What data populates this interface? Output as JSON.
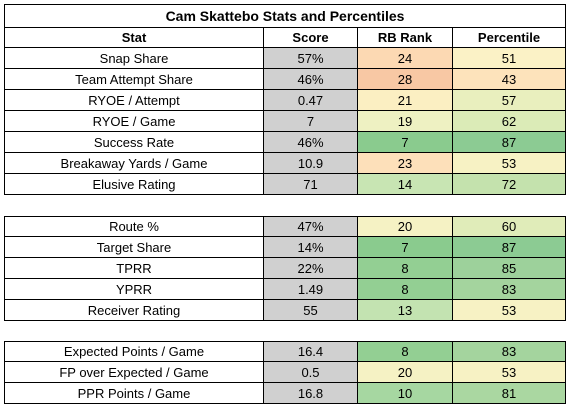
{
  "title": "Cam Skattebo Stats and Percentiles",
  "headers": [
    "Stat",
    "Score",
    "RB Rank",
    "Percentile"
  ],
  "colors": {
    "score_bg": "#d0d0d0",
    "rank_levels": {
      "7": "#8acb8e",
      "8": "#93cf93",
      "10": "#a6d7a1",
      "13": "#c3e3b1",
      "14": "#c8e5b3",
      "19": "#eef1c2",
      "20": "#f5f2c4",
      "21": "#fbefc2",
      "23": "#fde0ba",
      "24": "#fcd9b3",
      "28": "#f8c8a4"
    },
    "pct_levels": {
      "43": "#fde3bb",
      "51": "#fbf2c6",
      "53": "#f7f2c4",
      "57": "#e9efbe",
      "60": "#e0ecb9",
      "62": "#dbebb7",
      "72": "#c4e2ad",
      "81": "#aad7a1",
      "83": "#a4d49e",
      "85": "#9dd19b",
      "87": "#8ccb93"
    }
  },
  "sections": [
    {
      "rows": [
        {
          "stat": "Snap Share",
          "score": "57%",
          "rank": "24",
          "percentile": "51"
        },
        {
          "stat": "Team Attempt Share",
          "score": "46%",
          "rank": "28",
          "percentile": "43"
        },
        {
          "stat": "RYOE / Attempt",
          "score": "0.47",
          "rank": "21",
          "percentile": "57"
        },
        {
          "stat": "RYOE / Game",
          "score": "7",
          "rank": "19",
          "percentile": "62"
        },
        {
          "stat": "Success Rate",
          "score": "46%",
          "rank": "7",
          "percentile": "87"
        },
        {
          "stat": "Breakaway Yards / Game",
          "score": "10.9",
          "rank": "23",
          "percentile": "53"
        },
        {
          "stat": "Elusive Rating",
          "score": "71",
          "rank": "14",
          "percentile": "72"
        }
      ]
    },
    {
      "rows": [
        {
          "stat": "Route %",
          "score": "47%",
          "rank": "20",
          "percentile": "60"
        },
        {
          "stat": "Target Share",
          "score": "14%",
          "rank": "7",
          "percentile": "87"
        },
        {
          "stat": "TPRR",
          "score": "22%",
          "rank": "8",
          "percentile": "85"
        },
        {
          "stat": "YPRR",
          "score": "1.49",
          "rank": "8",
          "percentile": "83"
        },
        {
          "stat": "Receiver Rating",
          "score": "55",
          "rank": "13",
          "percentile": "53"
        }
      ]
    },
    {
      "rows": [
        {
          "stat": "Expected Points / Game",
          "score": "16.4",
          "rank": "8",
          "percentile": "83"
        },
        {
          "stat": "FP over Expected / Game",
          "score": "0.5",
          "rank": "20",
          "percentile": "53"
        },
        {
          "stat": "PPR Points / Game",
          "score": "16.8",
          "rank": "10",
          "percentile": "81"
        }
      ]
    }
  ]
}
